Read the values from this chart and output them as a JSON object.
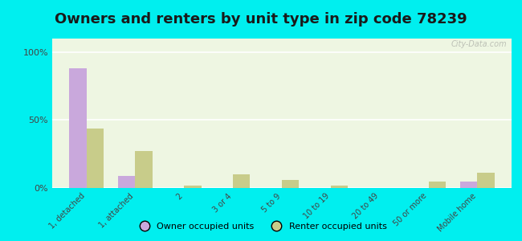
{
  "title": "Owners and renters by unit type in zip code 78239",
  "categories": [
    "1, detached",
    "1, attached",
    "2",
    "3 or 4",
    "5 to 9",
    "10 to 19",
    "20 to 49",
    "50 or more",
    "Mobile home"
  ],
  "owner_values": [
    88,
    9,
    0,
    0,
    0,
    0,
    0,
    0,
    5
  ],
  "renter_values": [
    44,
    27,
    2,
    10,
    6,
    2,
    0,
    5,
    11
  ],
  "owner_color": "#c9a8dc",
  "renter_color": "#c8cc8a",
  "background_color": "#00efef",
  "plot_bg_color": "#eef6e2",
  "yticks": [
    0,
    50,
    100
  ],
  "ylim": [
    0,
    110
  ],
  "legend_owner": "Owner occupied units",
  "legend_renter": "Renter occupied units",
  "bar_width": 0.35,
  "title_fontsize": 13
}
